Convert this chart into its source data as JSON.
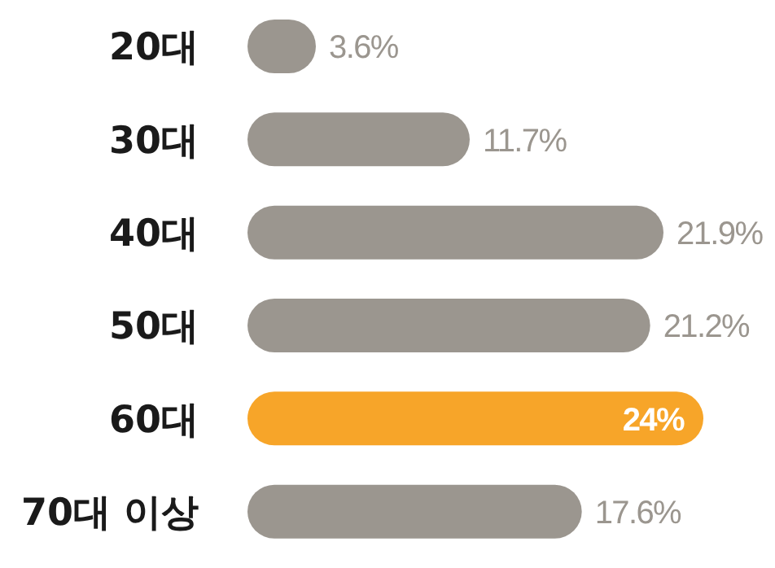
{
  "chart_data": {
    "type": "bar",
    "orientation": "horizontal",
    "categories": [
      "20대",
      "30대",
      "40대",
      "50대",
      "60대",
      "70대 이상"
    ],
    "values": [
      3.6,
      11.7,
      21.9,
      21.2,
      24,
      17.6
    ],
    "colors": [
      "#9b968f",
      "#9b968f",
      "#9b968f",
      "#9b968f",
      "#f7a529",
      "#9b968f"
    ],
    "value_labels": [
      "3.6%",
      "11.7%",
      "21.9%",
      "21.2%",
      "24%",
      "17.6%"
    ],
    "legend": false,
    "grid": false
  }
}
